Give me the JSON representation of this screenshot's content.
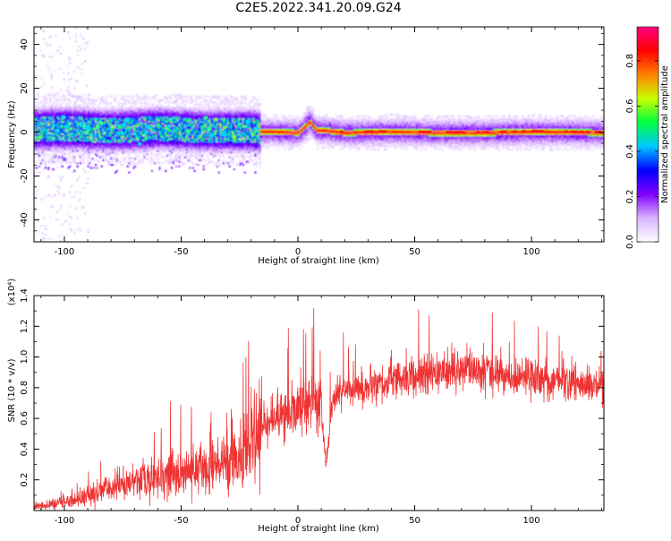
{
  "figure_title": "C2E5.2022.341.20.09.G24",
  "colorbar": {
    "label": "Normalized spectral amplitude",
    "ticks": [
      "0.0",
      "0.2",
      "0.4",
      "0.6",
      "0.8"
    ],
    "tick_values": [
      0.0,
      0.2,
      0.4,
      0.6,
      0.8
    ],
    "range": [
      0,
      0.95
    ],
    "colormap": "rainbow",
    "colors": [
      "#ffffff",
      "#d9b3ff",
      "#8000ff",
      "#0000ff",
      "#00c8ff",
      "#00ff40",
      "#c8ff00",
      "#ff8000",
      "#ff0000",
      "#ff0080"
    ]
  },
  "chart_data": [
    {
      "type": "heatmap",
      "xlabel": "Height of straight line (km)",
      "ylabel": "Frequency (Hz)",
      "xlim": [
        -113,
        131
      ],
      "ylim": [
        -50,
        48
      ],
      "xticks": [
        "-100",
        "-50",
        "0",
        "50",
        "100"
      ],
      "xtick_values": [
        -100,
        -50,
        0,
        50,
        100
      ],
      "yticks": [
        "-40",
        "-20",
        "0",
        "20",
        "40"
      ],
      "ytick_values": [
        -40,
        -20,
        0,
        20,
        40
      ],
      "grid": false,
      "ridge": {
        "x": [
          -113,
          -100,
          -80,
          -60,
          -40,
          -20,
          -16,
          -10,
          0,
          5,
          8,
          12,
          20,
          40,
          60,
          80,
          100,
          131
        ],
        "y": [
          1.5,
          2,
          1,
          2,
          1,
          1,
          0.5,
          0.5,
          0,
          5,
          1,
          1,
          0,
          0.5,
          0,
          0,
          0.5,
          0
        ]
      }
    },
    {
      "type": "line",
      "xlabel": "Height of straight line (km)",
      "ylabel": "SNR (10 * v/v)",
      "y_multiplier": "(x10⁴)",
      "xlim": [
        -113,
        131
      ],
      "ylim": [
        0,
        1.4
      ],
      "xticks": [
        "-100",
        "-50",
        "0",
        "50",
        "100"
      ],
      "xtick_values": [
        -100,
        -50,
        0,
        50,
        100
      ],
      "yticks": [
        "0.2",
        "0.4",
        "0.6",
        "0.8",
        "1.0",
        "1.2",
        "1.4"
      ],
      "ytick_values": [
        0.2,
        0.4,
        0.6,
        0.8,
        1.0,
        1.2,
        1.4
      ],
      "grid": false,
      "color": "#ef3333",
      "series": [
        {
          "x": [
            -113,
            -105,
            -100,
            -95,
            -90,
            -85,
            -80,
            -75,
            -70,
            -65,
            -60,
            -55,
            -50,
            -45,
            -40,
            -35,
            -30,
            -25,
            -20,
            -17,
            -15,
            -12,
            -10,
            -5,
            0,
            5,
            8,
            10,
            11,
            12,
            15,
            20,
            30,
            40,
            50,
            60,
            70,
            80,
            90,
            100,
            110,
            120,
            131
          ],
          "y": [
            0.02,
            0.04,
            0.06,
            0.07,
            0.09,
            0.12,
            0.15,
            0.17,
            0.19,
            0.21,
            0.22,
            0.24,
            0.24,
            0.26,
            0.27,
            0.28,
            0.32,
            0.36,
            0.42,
            0.5,
            0.55,
            0.58,
            0.6,
            0.62,
            0.66,
            0.7,
            0.72,
            0.7,
            0.4,
            0.3,
            0.74,
            0.78,
            0.8,
            0.84,
            0.87,
            0.9,
            0.92,
            0.9,
            0.88,
            0.86,
            0.84,
            0.82,
            0.8
          ]
        }
      ]
    }
  ]
}
